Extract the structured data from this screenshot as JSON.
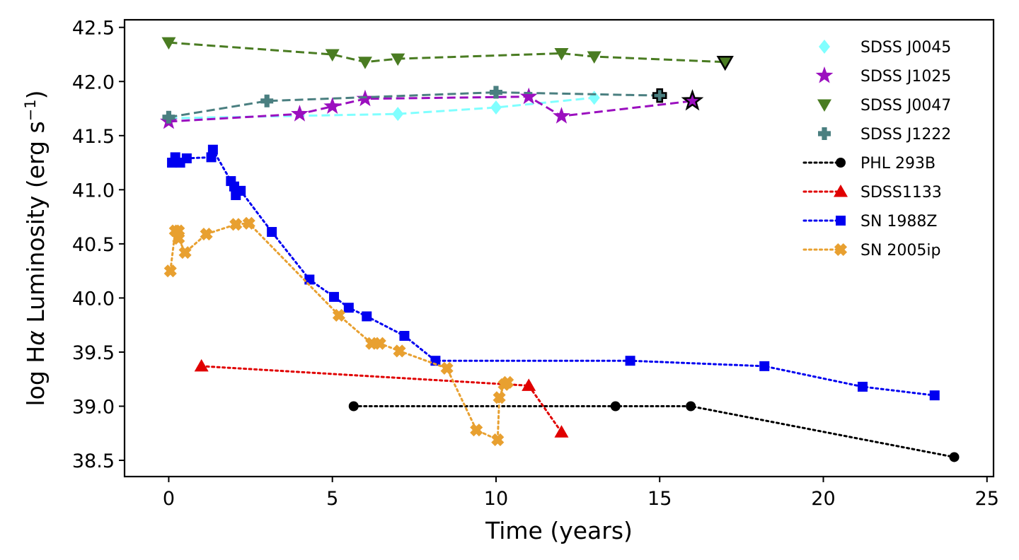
{
  "chart_data": {
    "type": "line",
    "xlabel": "Time (years)",
    "ylabel_parts": {
      "prefix": "log H",
      "alpha": "α",
      "middle": " Luminosity (erg s",
      "superscript": "−1",
      "suffix": ")"
    },
    "xlim": [
      -1.35,
      25.2
    ],
    "ylim": [
      38.35,
      42.57
    ],
    "xticks": [
      0,
      5,
      10,
      15,
      20,
      25
    ],
    "xtick_labels": [
      "0",
      "5",
      "10",
      "15",
      "20",
      "25"
    ],
    "yticks": [
      38.5,
      39.0,
      39.5,
      40.0,
      40.5,
      41.0,
      41.5,
      42.0,
      42.5
    ],
    "ytick_labels": [
      "38.5",
      "39.0",
      "39.5",
      "40.0",
      "40.5",
      "41.0",
      "41.5",
      "42.0",
      "42.5"
    ],
    "grid": false,
    "legend_position": "top-right",
    "series": [
      {
        "name": "SDSS J0045",
        "marker": "diamond",
        "line": "dashed",
        "color": "#80ffff",
        "x": [
          0,
          7,
          10,
          13
        ],
        "y": [
          41.66,
          41.7,
          41.76,
          41.85
        ]
      },
      {
        "name": "SDSS J1025",
        "marker": "star",
        "line": "dashed",
        "color": "#9b0fbf",
        "x": [
          0,
          4,
          5,
          6,
          11,
          12,
          16
        ],
        "y": [
          41.63,
          41.7,
          41.77,
          41.84,
          41.86,
          41.68,
          41.82
        ],
        "last_point_edge": "#000000"
      },
      {
        "name": "SDSS J0047",
        "marker": "triangle-down",
        "line": "dashed",
        "color": "#4a7c22",
        "x": [
          0,
          5,
          6,
          7,
          12,
          13,
          17
        ],
        "y": [
          42.36,
          42.25,
          42.18,
          42.21,
          42.26,
          42.23,
          42.18
        ],
        "last_point_edge": "#000000"
      },
      {
        "name": "SDSS J1222",
        "marker": "plus",
        "line": "dashed",
        "color": "#4a7f80",
        "x": [
          0,
          3,
          10,
          15
        ],
        "y": [
          41.67,
          41.82,
          41.9,
          41.87
        ],
        "last_point_edge": "#000000"
      },
      {
        "name": "PHL 293B",
        "marker": "circle",
        "line": "dotted",
        "color": "#000000",
        "x": [
          5.65,
          13.65,
          15.95,
          24.0
        ],
        "y": [
          39.0,
          39.0,
          39.0,
          38.53
        ]
      },
      {
        "name": "SDSS1133",
        "marker": "triangle-up",
        "line": "dotted",
        "color": "#e00000",
        "x": [
          1.0,
          11.0,
          12.0
        ],
        "y": [
          39.37,
          39.19,
          38.76
        ]
      },
      {
        "name": "SN 1988Z",
        "marker": "square",
        "line": "dotted",
        "color": "#0000f0",
        "x": [
          0.1,
          0.2,
          0.35,
          0.55,
          1.3,
          1.35,
          1.9,
          2.0,
          2.05,
          2.2,
          3.15,
          4.3,
          5.05,
          5.5,
          6.05,
          7.2,
          8.15,
          14.1,
          18.2,
          21.2,
          23.4
        ],
        "y": [
          41.25,
          41.3,
          41.25,
          41.29,
          41.3,
          41.37,
          41.08,
          41.03,
          40.95,
          40.99,
          40.61,
          40.17,
          40.01,
          39.91,
          39.83,
          39.65,
          39.42,
          39.42,
          39.37,
          39.18,
          39.1
        ]
      },
      {
        "name": "SN 2005ip",
        "marker": "x-filled",
        "line": "dotted",
        "color": "#e8a030",
        "x": [
          0.05,
          0.2,
          0.3,
          0.3,
          0.5,
          1.15,
          2.05,
          2.45,
          5.2,
          6.2,
          6.45,
          7.05,
          8.5,
          9.4,
          10.05,
          10.1,
          10.25,
          10.35
        ],
        "y": [
          40.25,
          40.62,
          40.62,
          40.55,
          40.42,
          40.59,
          40.68,
          40.69,
          39.84,
          39.58,
          39.58,
          39.51,
          39.35,
          38.78,
          38.69,
          39.08,
          39.2,
          39.22
        ]
      }
    ]
  }
}
